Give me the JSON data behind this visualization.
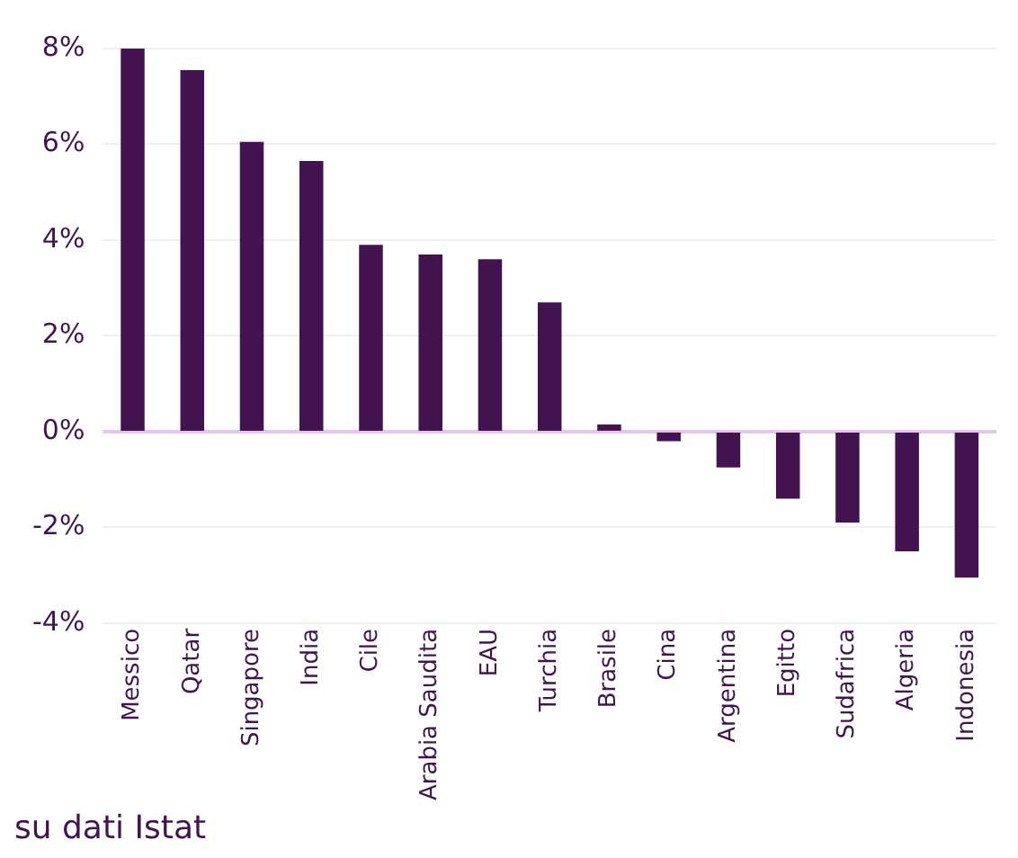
{
  "chart_data": {
    "type": "bar",
    "categories": [
      "Messico",
      "Qatar",
      "Singapore",
      "India",
      "Cile",
      "Arabia Saudita",
      "EAU",
      "Turchia",
      "Brasile",
      "Cina",
      "Argentina",
      "Egitto",
      "Sudafrica",
      "Algeria",
      "Indonesia"
    ],
    "values": [
      8.0,
      7.55,
      6.05,
      5.65,
      3.9,
      3.7,
      3.6,
      2.7,
      0.15,
      -0.2,
      -0.75,
      -1.4,
      -1.9,
      -2.5,
      -3.05
    ],
    "color": "#43134f",
    "ylim": [
      -4,
      8
    ],
    "yticks": [
      {
        "value": -4,
        "label": "-4%"
      },
      {
        "value": -2,
        "label": "-2%"
      },
      {
        "value": 0,
        "label": "0%"
      },
      {
        "value": 2,
        "label": "2%"
      },
      {
        "value": 4,
        "label": "4%"
      },
      {
        "value": 6,
        "label": "6%"
      },
      {
        "value": 8,
        "label": "8%"
      }
    ],
    "grid": "y",
    "ref_lines": [
      {
        "axis": "y",
        "value": 0,
        "color": "#e2c6f2"
      }
    ],
    "legend": false,
    "annotations": [
      "su dati Istat"
    ]
  }
}
